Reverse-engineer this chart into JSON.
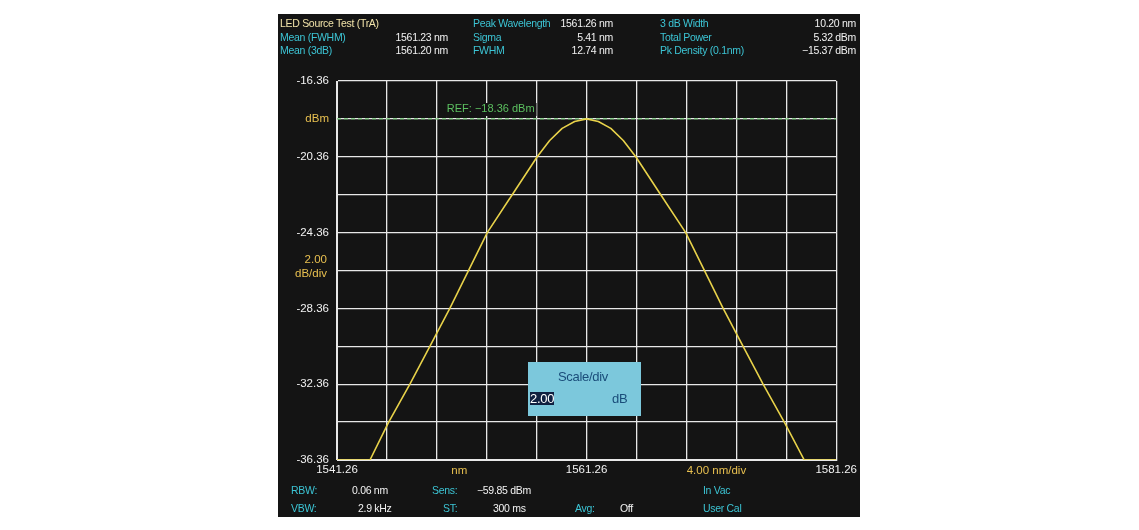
{
  "chart_data": {
    "type": "line",
    "title": "LED Source Test (TrA)",
    "xlabel": "nm",
    "ylabel": "2.00 dB/div",
    "x": [
      1541.26,
      1543.9,
      1545.4,
      1547.1,
      1548.7,
      1550.3,
      1553.3,
      1555.3,
      1557.3,
      1558.3,
      1559.3,
      1560.3,
      1561.26,
      1562.2,
      1563.2,
      1564.2,
      1565.2,
      1567.2,
      1569.2,
      1572.2,
      1573.8,
      1575.4,
      1577.1,
      1578.7,
      1581.26
    ],
    "series": [
      {
        "color": "#e8d24a",
        "values": [
          -36.36,
          -36.36,
          -34.36,
          -32.36,
          -30.36,
          -28.36,
          -24.36,
          -22.36,
          -20.36,
          -19.5,
          -18.86,
          -18.5,
          -18.36,
          -18.5,
          -18.86,
          -19.5,
          -20.36,
          -22.36,
          -24.36,
          -28.36,
          -30.36,
          -32.36,
          -34.36,
          -36.36,
          -36.36
        ]
      }
    ],
    "xlim": [
      1541.26,
      1581.26
    ],
    "xticks": [
      1541.26,
      {
        "value": 1545.26,
        "label": null
      },
      {
        "value": 1549.26,
        "label": null
      },
      {
        "value": 1553.26,
        "label": null
      },
      {
        "value": 1557.26,
        "label": null
      },
      1561.26,
      {
        "value": 1565.26,
        "label": null
      },
      {
        "value": 1569.26,
        "label": null
      },
      {
        "value": 1573.26,
        "label": null
      },
      {
        "value": 1577.26,
        "label": null
      },
      1581.26
    ],
    "ylim": [
      -36.36,
      -16.36
    ],
    "yticks": [
      -36.36,
      {
        "value": -34.36,
        "label": null
      },
      -32.36,
      {
        "value": -30.36,
        "label": null
      },
      -28.36,
      {
        "value": -26.36,
        "label": null
      },
      -24.36,
      {
        "value": -22.36,
        "label": null
      },
      -20.36,
      {
        "value": -18.36,
        "label": "dBm"
      },
      -16.36
    ],
    "grid": true,
    "legend": false,
    "marker": "none",
    "line_style": "solid",
    "ref_lines": [
      {
        "axis": "y",
        "value": -18.36,
        "label": "REF: −18.36 dBm",
        "color": "#5cc060",
        "line_style": "dashed"
      }
    ],
    "annotations": [
      "Peak Wavelength",
      "1561.26 nm",
      "3 dB Width",
      "10.20 nm",
      "Mean (FWHM)",
      "1561.23 nm",
      "Sigma",
      "5.41 nm",
      "Total Power",
      "5.32 dBm",
      "Mean (3dB)",
      "1561.20 nm",
      "FWHM",
      "12.74 nm",
      "Pk Density (0.1nm)",
      "−15.37 dBm",
      "RBW:",
      "0.06 nm",
      "Sens:",
      "−59.85 dBm",
      "In Vac",
      "VBW:",
      "2.9 kHz",
      "ST:",
      "300 ms",
      "Avg:",
      "Off",
      "User Cal",
      "4.00 nm/div",
      "Scale/div",
      "2.00",
      "dB"
    ]
  }
}
